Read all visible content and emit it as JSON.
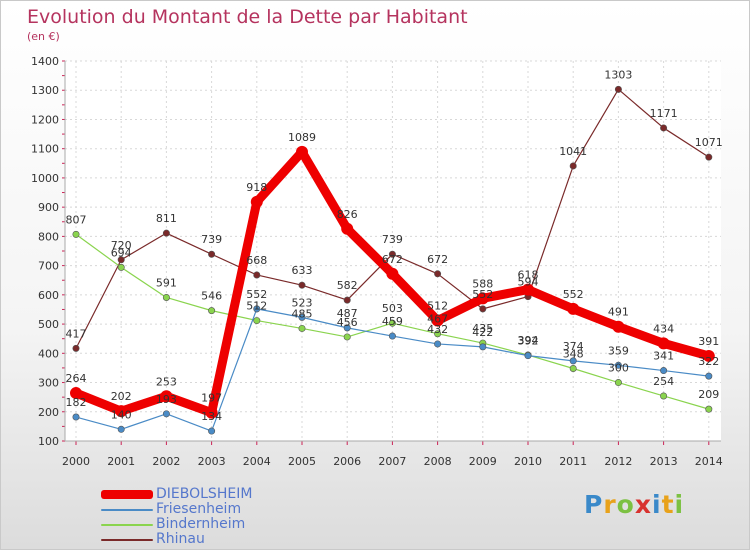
{
  "title": "Evolution du Montant de la Dette par Habitant",
  "subtitle": "(en €)",
  "logo_text": "Proxiti",
  "chart_data": {
    "type": "line",
    "title": "Evolution du Montant de la Dette par Habitant",
    "ylabel": "(en €)",
    "xlabel": "",
    "ylim": [
      100,
      1400
    ],
    "yticks": [
      100,
      200,
      300,
      400,
      500,
      600,
      700,
      800,
      900,
      1000,
      1100,
      1200,
      1300,
      1400
    ],
    "x": [
      "2000",
      "2001",
      "2002",
      "2003",
      "2004",
      "2005",
      "2006",
      "2007",
      "2008",
      "2009",
      "2010",
      "2011",
      "2012",
      "2013",
      "2014"
    ],
    "grid": true,
    "legend_position": "bottom-left",
    "series": [
      {
        "name": "DIEBOLSHEIM",
        "color": "#ee0000",
        "values": [
          264,
          202,
          253,
          197,
          918,
          1089,
          826,
          672,
          512,
          588,
          618,
          552,
          491,
          434,
          391
        ]
      },
      {
        "name": "Friesenheim",
        "color": "#4a8bc6",
        "values": [
          182,
          140,
          193,
          134,
          552,
          523,
          487,
          459,
          432,
          422,
          392,
          374,
          359,
          341,
          322
        ]
      },
      {
        "name": "Bindernheim",
        "color": "#8ad44e",
        "values": [
          807,
          694,
          591,
          546,
          512,
          485,
          456,
          503,
          467,
          435,
          394,
          348,
          300,
          254,
          209
        ]
      },
      {
        "name": "Rhinau",
        "color": "#7a2a2a",
        "values": [
          417,
          720,
          811,
          739,
          668,
          633,
          582,
          739,
          672,
          552,
          594,
          1041,
          1303,
          1171,
          1071
        ]
      }
    ]
  }
}
